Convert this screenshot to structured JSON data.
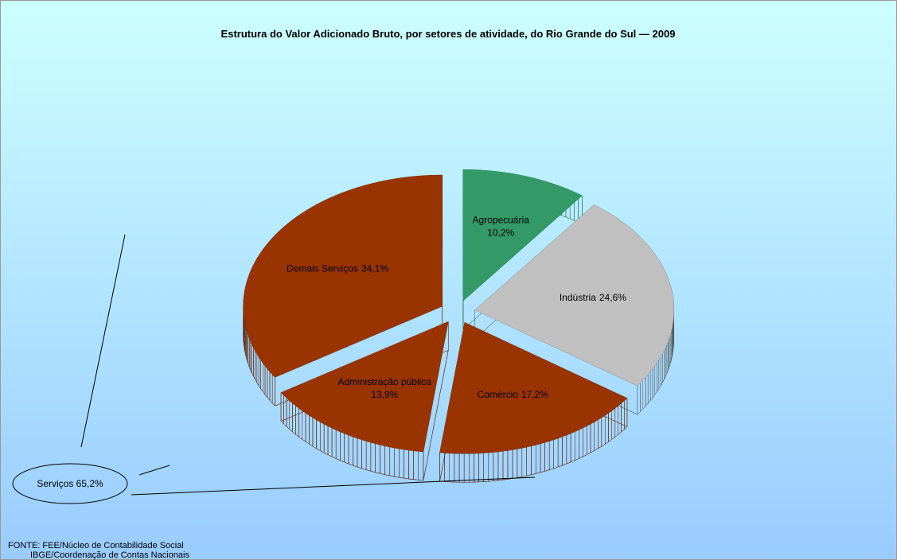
{
  "chart_data": {
    "type": "pie",
    "title": "Estrutura do Valor Adicionado Bruto, por setores de atividade, do Rio Grande do Sul — 2009",
    "categories": [
      "Agropecuária",
      "Indústria",
      "Comércio",
      "Administração pública",
      "Demais Serviços"
    ],
    "values": [
      10.2,
      24.6,
      17.2,
      13.9,
      34.1
    ],
    "value_labels": [
      "10,2%",
      "24,6%",
      "17,2%",
      "13,9%",
      "34,1%"
    ],
    "colors": [
      "#339966",
      "#c0c0c0",
      "#993300",
      "#993300",
      "#993300"
    ],
    "side_colors": [
      "#226b47",
      "#555555",
      "#5c1c00",
      "#5c1c00",
      "#5c1c00"
    ],
    "annotation": "Serviços 65,2%",
    "source": [
      "FONTE: FEE/Núcleo de Contabilidade Social",
      "IBGE/Coordenação de Contas Nacionais"
    ]
  }
}
